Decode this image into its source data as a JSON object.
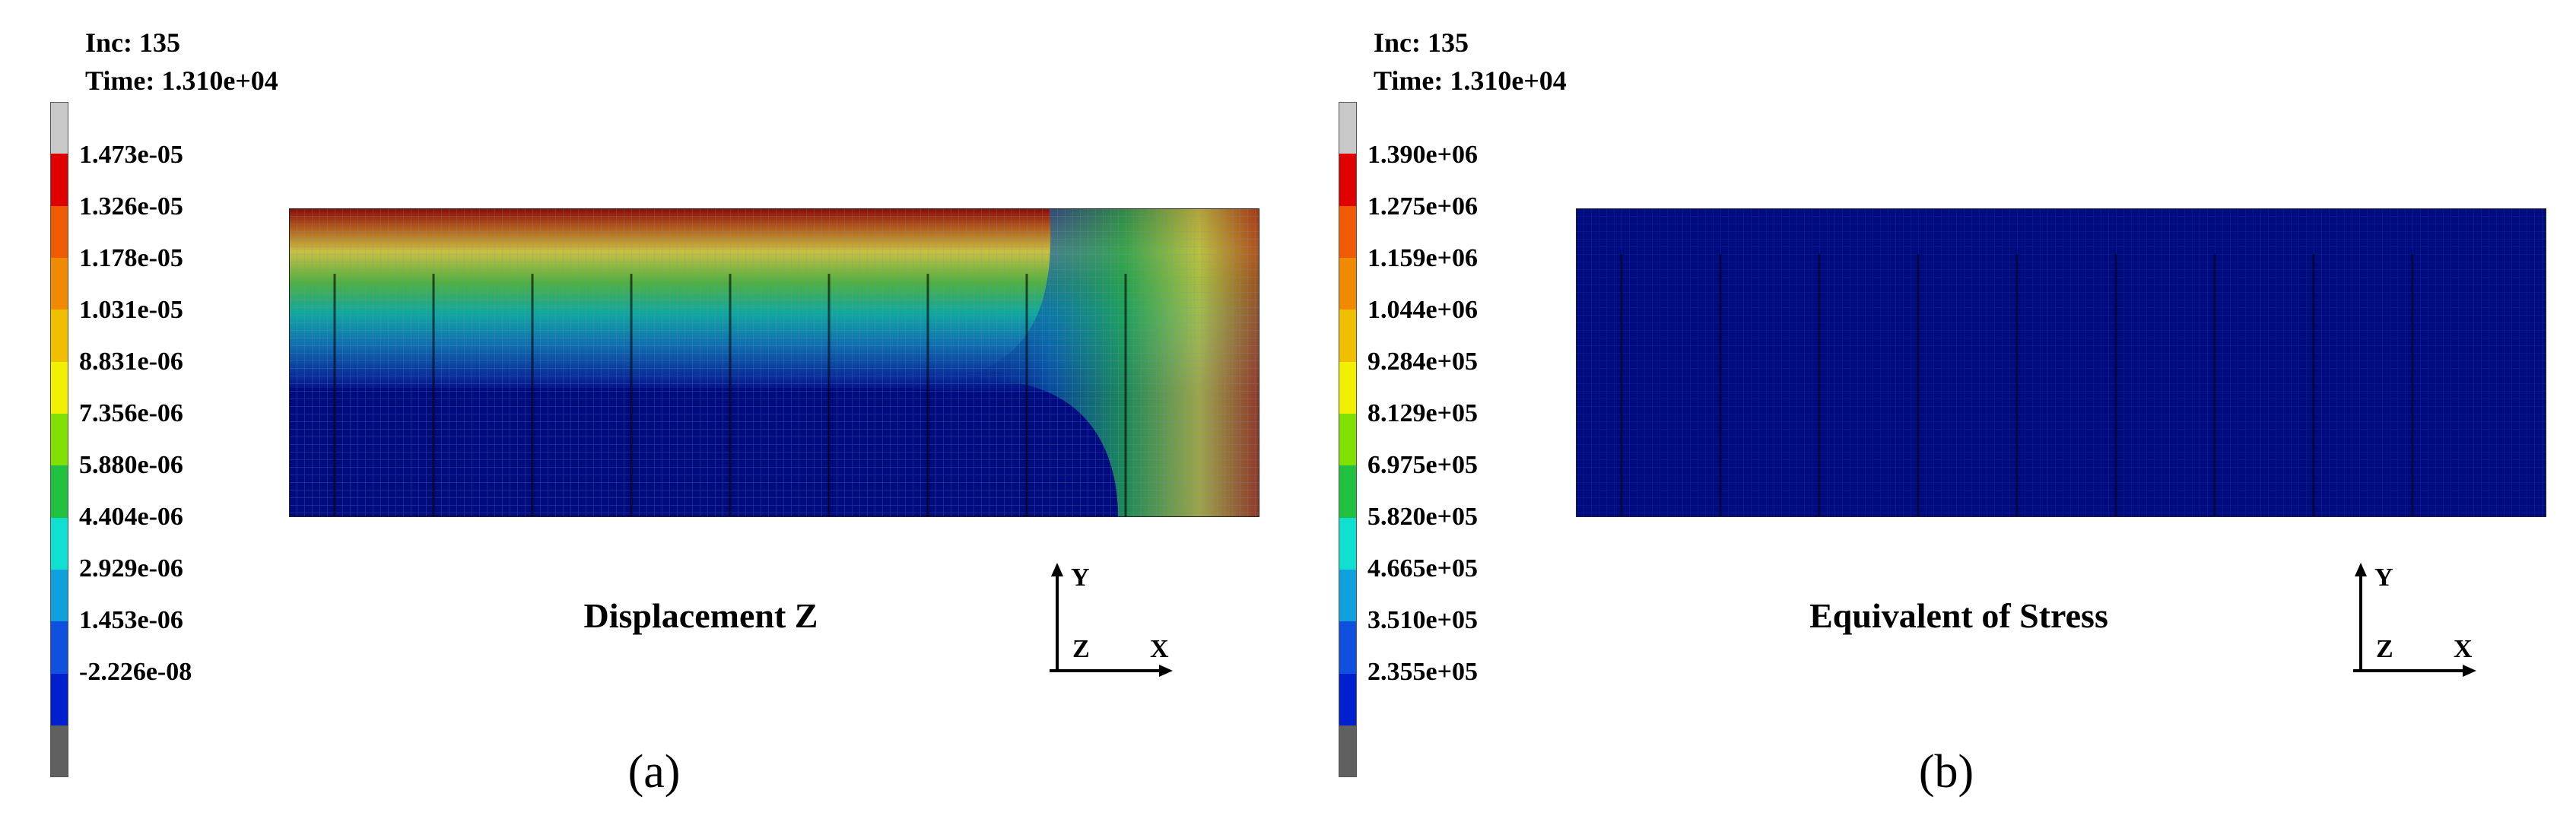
{
  "panels": [
    {
      "id": "a",
      "inc": "Inc: 135",
      "time": "Time: 1.310e+04",
      "quantity": "Displacement Z",
      "sublabel": "(a)",
      "legend_ticks": [
        "1.473e-05",
        "1.326e-05",
        "1.178e-05",
        "1.031e-05",
        "8.831e-06",
        "7.356e-06",
        "5.880e-06",
        "4.404e-06",
        "2.929e-06",
        "1.453e-06",
        "-2.226e-08"
      ]
    },
    {
      "id": "b",
      "inc": "Inc: 135",
      "time": "Time: 1.310e+04",
      "quantity": "Equivalent of Stress",
      "sublabel": "(b)",
      "legend_ticks": [
        "1.390e+06",
        "1.275e+06",
        "1.159e+06",
        "1.044e+06",
        "9.284e+05",
        "8.129e+05",
        "6.975e+05",
        "5.820e+05",
        "4.665e+05",
        "3.510e+05",
        "2.355e+05"
      ]
    }
  ],
  "axes": {
    "y": "Y",
    "z": "Z",
    "x": "X"
  },
  "colors": {
    "legend": [
      "#c8c8c8",
      "#e00000",
      "#f05a00",
      "#f08a00",
      "#f0c000",
      "#f0f000",
      "#80e000",
      "#20c040",
      "#10e0d0",
      "#10a0e0",
      "#1050e0",
      "#0020d0",
      "#606060"
    ],
    "mesh_dark_blue": "#000b80",
    "mesh_grid": "#6f7fb0"
  }
}
